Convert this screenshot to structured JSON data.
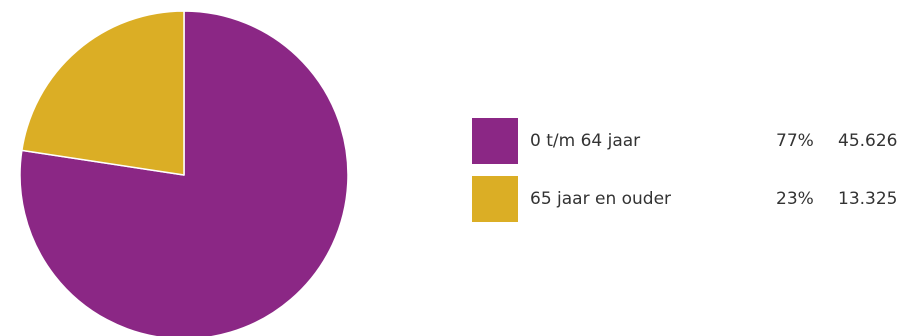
{
  "chart_data": {
    "type": "pie",
    "title": "",
    "slices": [
      {
        "label": "0 t/m 64 jaar",
        "percent_label": "77%",
        "value": 45626,
        "value_label": "45.626",
        "color": "#8B2785"
      },
      {
        "label": "65 jaar en ouder",
        "percent_label": "23%",
        "value": 13325,
        "value_label": "13.325",
        "color": "#DBAE25"
      }
    ],
    "start_angle_deg": 0,
    "direction": "clockwise",
    "legend_position": "right",
    "slice_border_color": "#ffffff"
  }
}
